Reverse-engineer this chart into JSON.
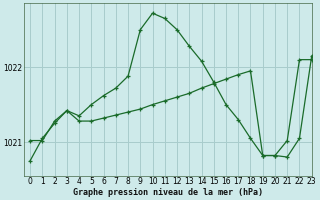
{
  "title": "Graphe pression niveau de la mer (hPa)",
  "background_color": "#ceeaea",
  "grid_color": "#a8cccc",
  "line_color": "#1a6b2a",
  "xlim": [
    -0.5,
    23
  ],
  "ylim": [
    1020.55,
    1022.85
  ],
  "yticks": [
    1021,
    1022
  ],
  "ytick_labels": [
    "1021",
    "1022"
  ],
  "xticks": [
    0,
    1,
    2,
    3,
    4,
    5,
    6,
    7,
    8,
    9,
    10,
    11,
    12,
    13,
    14,
    15,
    16,
    17,
    18,
    19,
    20,
    21,
    22,
    23
  ],
  "curve1_x": [
    0,
    1,
    2,
    3,
    4,
    5,
    6,
    7,
    8,
    9,
    10,
    11,
    12,
    13,
    14,
    15,
    16,
    17,
    18,
    19,
    20,
    21,
    22,
    23
  ],
  "curve1_y": [
    1020.75,
    1021.05,
    1021.25,
    1021.42,
    1021.35,
    1021.5,
    1021.62,
    1021.72,
    1021.88,
    1022.5,
    1022.72,
    1022.65,
    1022.5,
    1022.28,
    1022.08,
    1021.8,
    1021.5,
    1021.3,
    1021.05,
    1020.82,
    1020.82,
    1021.02,
    1022.1,
    1022.1
  ],
  "curve2_x": [
    0,
    1,
    2,
    3,
    4,
    5,
    6,
    7,
    8,
    9,
    10,
    11,
    12,
    13,
    14,
    15,
    16,
    17,
    18,
    19,
    20,
    21,
    22,
    23
  ],
  "curve2_y": [
    1021.02,
    1021.02,
    1021.28,
    1021.42,
    1021.28,
    1021.28,
    1021.32,
    1021.36,
    1021.4,
    1021.44,
    1021.5,
    1021.55,
    1021.6,
    1021.65,
    1021.72,
    1021.78,
    1021.84,
    1021.9,
    1021.95,
    1020.82,
    1020.82,
    1020.8,
    1021.05,
    1022.15
  ]
}
